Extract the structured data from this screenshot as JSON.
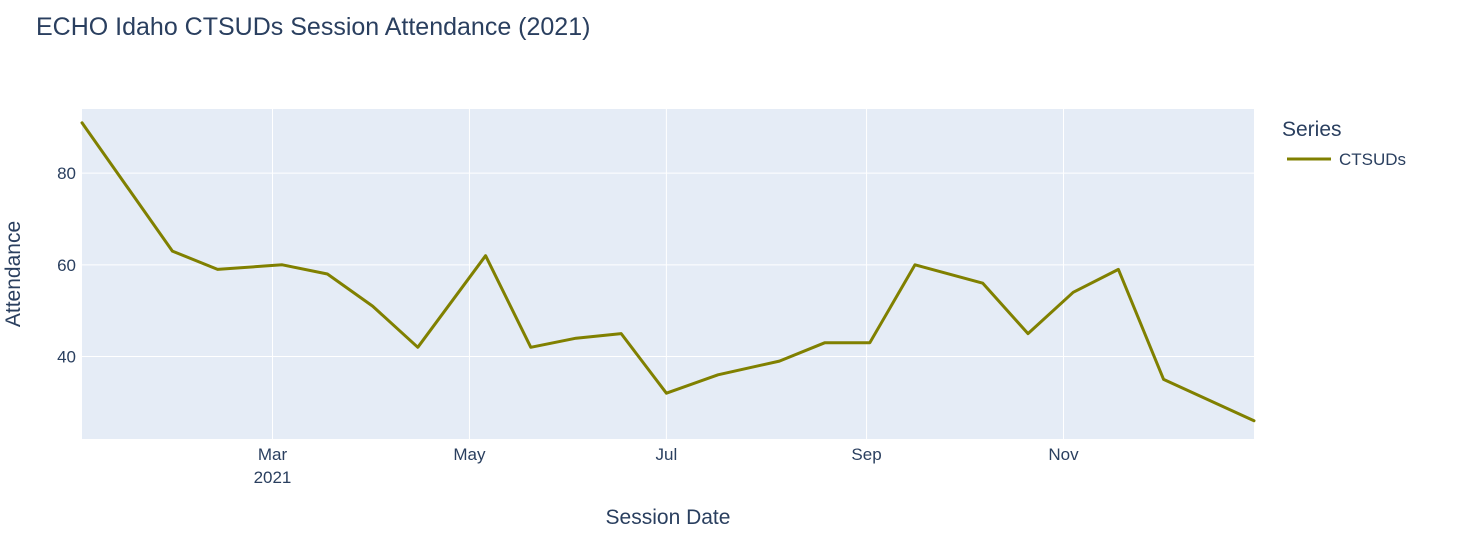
{
  "chart_data": {
    "type": "line",
    "title": "ECHO Idaho CTSUDs Session Attendance (2021)",
    "xlabel": "Session Date",
    "ylabel": "Attendance",
    "x_range": [
      "2021-01-01",
      "2021-12-30"
    ],
    "ylim": [
      22,
      94
    ],
    "x_ticks": [
      {
        "date": "2021-03-01",
        "label": "Mar",
        "sublabel": "2021"
      },
      {
        "date": "2021-05-01",
        "label": "May",
        "sublabel": ""
      },
      {
        "date": "2021-07-01",
        "label": "Jul",
        "sublabel": ""
      },
      {
        "date": "2021-09-01",
        "label": "Sep",
        "sublabel": ""
      },
      {
        "date": "2021-11-01",
        "label": "Nov",
        "sublabel": ""
      }
    ],
    "y_ticks": [
      40,
      60,
      80
    ],
    "grid": true,
    "legend": {
      "title": "Series",
      "position": "right"
    },
    "colors": {
      "plot_bg": "#e5ecf6",
      "grid": "#ffffff",
      "text": "#2a3f5f"
    },
    "series": [
      {
        "name": "CTSUDs",
        "color": "#808000",
        "x": [
          "2021-01-01",
          "2021-01-29",
          "2021-02-12",
          "2021-03-04",
          "2021-03-18",
          "2021-04-01",
          "2021-04-15",
          "2021-05-06",
          "2021-05-20",
          "2021-06-03",
          "2021-06-17",
          "2021-07-01",
          "2021-07-17",
          "2021-08-05",
          "2021-08-19",
          "2021-09-02",
          "2021-09-16",
          "2021-10-07",
          "2021-10-21",
          "2021-11-04",
          "2021-11-18",
          "2021-12-02",
          "2021-12-30"
        ],
        "y": [
          91,
          63,
          59,
          60,
          58,
          51,
          42,
          62,
          42,
          44,
          45,
          32,
          36,
          39,
          43,
          43,
          60,
          56,
          45,
          54,
          59,
          35,
          26
        ]
      }
    ]
  }
}
